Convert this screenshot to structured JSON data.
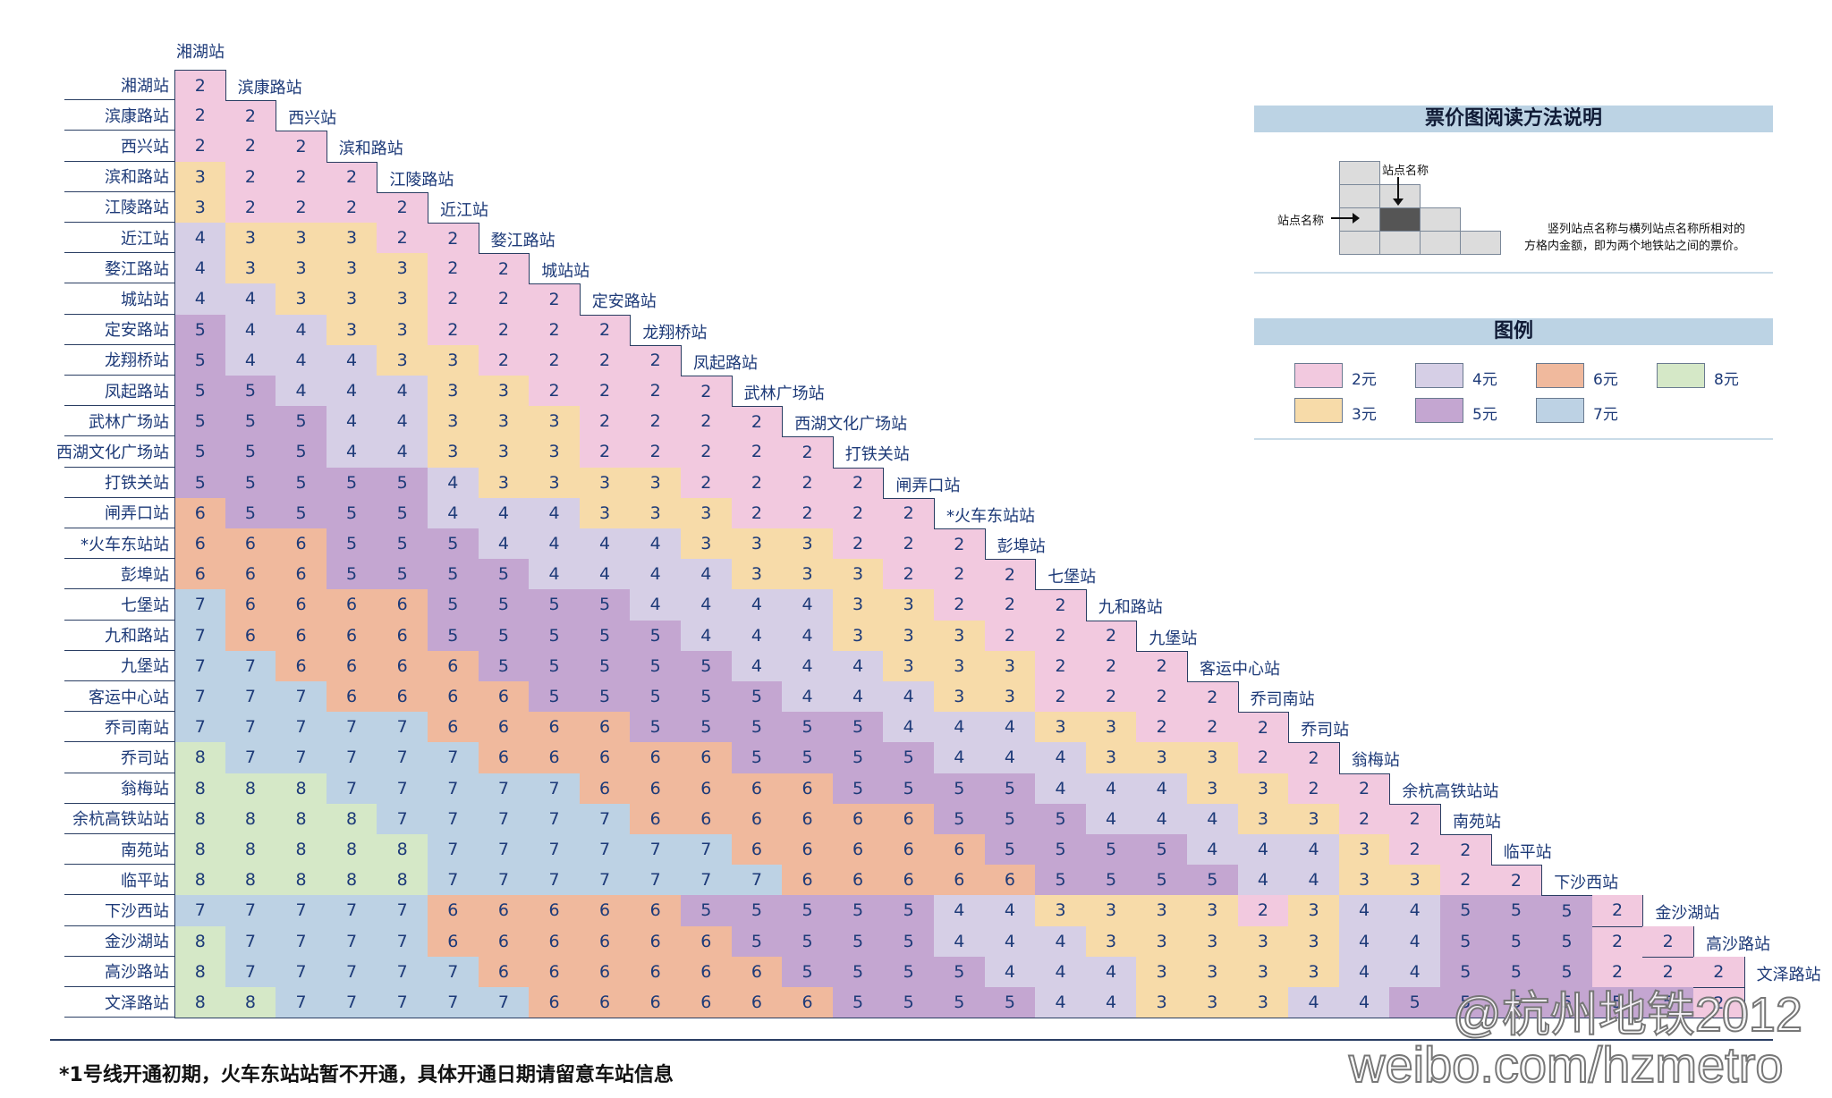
{
  "chart_data": {
    "type": "table",
    "title": "票价图",
    "stations": [
      "湘湖站",
      "滨康路站",
      "西兴站",
      "滨和路站",
      "江陵路站",
      "近江站",
      "婺江路站",
      "城站站",
      "定安路站",
      "龙翔桥站",
      "凤起路站",
      "武林广场站",
      "西湖文化广场站",
      "打铁关站",
      "闸弄口站",
      "*火车东站站",
      "彭埠站",
      "七堡站",
      "九和路站",
      "九堡站",
      "客运中心站",
      "乔司南站",
      "乔司站",
      "翁梅站",
      "余杭高铁站站",
      "南苑站",
      "临平站",
      "下沙西站",
      "金沙湖站",
      "高沙路站",
      "文泽路站"
    ],
    "fares": [
      [
        2
      ],
      [
        2,
        2
      ],
      [
        2,
        2,
        2
      ],
      [
        3,
        2,
        2,
        2
      ],
      [
        3,
        2,
        2,
        2,
        2
      ],
      [
        4,
        3,
        3,
        3,
        2,
        2
      ],
      [
        4,
        3,
        3,
        3,
        3,
        2,
        2
      ],
      [
        4,
        4,
        3,
        3,
        3,
        2,
        2,
        2
      ],
      [
        5,
        4,
        4,
        3,
        3,
        2,
        2,
        2,
        2
      ],
      [
        5,
        4,
        4,
        4,
        3,
        3,
        2,
        2,
        2,
        2
      ],
      [
        5,
        5,
        4,
        4,
        4,
        3,
        3,
        2,
        2,
        2,
        2
      ],
      [
        5,
        5,
        5,
        4,
        4,
        3,
        3,
        3,
        2,
        2,
        2,
        2
      ],
      [
        5,
        5,
        5,
        4,
        4,
        3,
        3,
        3,
        2,
        2,
        2,
        2,
        2
      ],
      [
        5,
        5,
        5,
        5,
        5,
        4,
        3,
        3,
        3,
        3,
        2,
        2,
        2,
        2
      ],
      [
        6,
        5,
        5,
        5,
        5,
        4,
        4,
        4,
        3,
        3,
        3,
        2,
        2,
        2,
        2
      ],
      [
        6,
        6,
        6,
        5,
        5,
        5,
        4,
        4,
        4,
        4,
        3,
        3,
        3,
        2,
        2,
        2
      ],
      [
        6,
        6,
        6,
        5,
        5,
        5,
        5,
        4,
        4,
        4,
        4,
        3,
        3,
        3,
        2,
        2,
        2
      ],
      [
        7,
        6,
        6,
        6,
        6,
        5,
        5,
        5,
        5,
        4,
        4,
        4,
        4,
        3,
        3,
        2,
        2,
        2
      ],
      [
        7,
        6,
        6,
        6,
        6,
        5,
        5,
        5,
        5,
        5,
        4,
        4,
        4,
        3,
        3,
        3,
        2,
        2,
        2
      ],
      [
        7,
        7,
        6,
        6,
        6,
        6,
        5,
        5,
        5,
        5,
        5,
        4,
        4,
        4,
        3,
        3,
        3,
        2,
        2,
        2
      ],
      [
        7,
        7,
        7,
        6,
        6,
        6,
        6,
        5,
        5,
        5,
        5,
        5,
        4,
        4,
        4,
        3,
        3,
        2,
        2,
        2,
        2
      ],
      [
        7,
        7,
        7,
        7,
        7,
        6,
        6,
        6,
        6,
        5,
        5,
        5,
        5,
        5,
        4,
        4,
        4,
        3,
        3,
        2,
        2,
        2
      ],
      [
        8,
        7,
        7,
        7,
        7,
        7,
        6,
        6,
        6,
        6,
        6,
        5,
        5,
        5,
        5,
        4,
        4,
        4,
        3,
        3,
        3,
        2,
        2
      ],
      [
        8,
        8,
        8,
        7,
        7,
        7,
        7,
        7,
        6,
        6,
        6,
        6,
        6,
        5,
        5,
        5,
        5,
        4,
        4,
        4,
        3,
        3,
        2,
        2
      ],
      [
        8,
        8,
        8,
        8,
        7,
        7,
        7,
        7,
        7,
        6,
        6,
        6,
        6,
        6,
        6,
        5,
        5,
        5,
        4,
        4,
        4,
        3,
        3,
        2,
        2
      ],
      [
        8,
        8,
        8,
        8,
        8,
        7,
        7,
        7,
        7,
        7,
        7,
        6,
        6,
        6,
        6,
        6,
        5,
        5,
        5,
        5,
        4,
        4,
        4,
        3,
        2,
        2
      ],
      [
        8,
        8,
        8,
        8,
        8,
        7,
        7,
        7,
        7,
        7,
        7,
        7,
        6,
        6,
        6,
        6,
        6,
        5,
        5,
        5,
        5,
        4,
        4,
        3,
        3,
        2,
        2
      ],
      [
        7,
        7,
        7,
        7,
        7,
        6,
        6,
        6,
        6,
        6,
        5,
        5,
        5,
        5,
        5,
        4,
        4,
        3,
        3,
        3,
        3,
        2,
        3,
        4,
        4,
        5,
        5,
        5,
        2
      ],
      [
        8,
        7,
        7,
        7,
        7,
        6,
        6,
        6,
        6,
        6,
        6,
        5,
        5,
        5,
        5,
        4,
        4,
        4,
        3,
        3,
        3,
        3,
        3,
        4,
        4,
        5,
        5,
        5,
        2,
        2
      ],
      [
        8,
        7,
        7,
        7,
        7,
        7,
        6,
        6,
        6,
        6,
        6,
        6,
        5,
        5,
        5,
        5,
        4,
        4,
        4,
        3,
        3,
        3,
        3,
        4,
        4,
        5,
        5,
        5,
        2,
        2,
        2
      ],
      [
        8,
        8,
        7,
        7,
        7,
        7,
        7,
        6,
        6,
        6,
        6,
        6,
        6,
        5,
        5,
        5,
        5,
        4,
        4,
        3,
        3,
        3,
        4,
        4,
        5,
        5,
        5,
        5,
        5,
        5,
        2
      ]
    ],
    "fare_colors": {
      "2": "#f2c9df",
      "3": "#f7dba9",
      "4": "#d6cfe6",
      "5": "#c4a6d1",
      "6": "#f0b99d",
      "7": "#bdd2e4",
      "8": "#d5e8c7"
    }
  },
  "reading_guide": {
    "title": "票价图阅读方法说明",
    "station_name_top": "站点名称",
    "station_name_left": "站点名称",
    "explanation_line1": "竖列站点名称与横列站点名称所相对的",
    "explanation_line2": "方格内金额，即为两个地铁站之间的票价。"
  },
  "legend": {
    "title": "图例",
    "items": [
      {
        "fare": "2",
        "label": "2元"
      },
      {
        "fare": "4",
        "label": "4元"
      },
      {
        "fare": "6",
        "label": "6元"
      },
      {
        "fare": "8",
        "label": "8元"
      },
      {
        "fare": "3",
        "label": "3元"
      },
      {
        "fare": "5",
        "label": "5元"
      },
      {
        "fare": "7",
        "label": "7元"
      }
    ]
  },
  "footnote": "*1号线开通初期，火车东站站暂不开通，具体开通日期请留意车站信息",
  "watermark": {
    "line1": "@杭州地铁2012",
    "line2": "weibo.com/hzmetro"
  }
}
